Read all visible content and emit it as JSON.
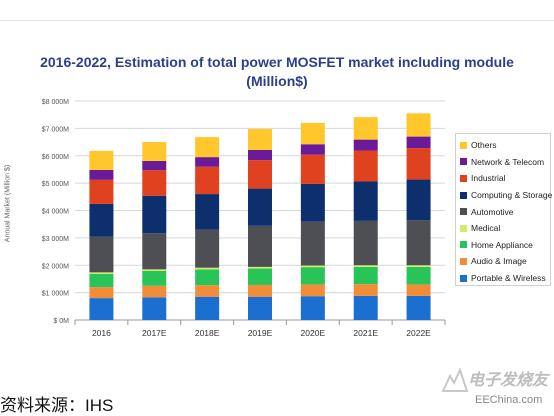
{
  "title_line1": "2016-2022, Estimation of total power MOSFET market including module",
  "title_line2": "(Million$)",
  "source_text": "资料来源：IHS",
  "watermark": {
    "chinese": "电子发烧友",
    "site": "EEChina.com"
  },
  "colors": {
    "Others": "#ffc72c",
    "Network & Telecom": "#6a1b9a",
    "Industrial": "#e0411e",
    "Computing & Storage": "#0d2f6e",
    "Automotive": "#4d4f55",
    "Medical": "#d8e86b",
    "Home Appliance": "#29c458",
    "Audio & Image": "#f28c38",
    "Portable & Wireless": "#1b6fd1"
  },
  "chart_data": {
    "type": "bar",
    "stacked": true,
    "title": "2016-2022, Estimation of total power MOSFET market including module (Million$)",
    "ylabel": "Annual Market (Million $)",
    "xlabel": "",
    "categories": [
      "2016",
      "2017E",
      "2018E",
      "2019E",
      "2020E",
      "2021E",
      "2022E"
    ],
    "ylim": [
      0,
      8000
    ],
    "yticks": [
      0,
      1000,
      2000,
      3000,
      4000,
      5000,
      6000,
      7000,
      8000
    ],
    "ytick_labels": [
      "$ 0M",
      "$1 000M",
      "$2 000M",
      "$3 000M",
      "$4 000M",
      "$5 000M",
      "$6 000M",
      "$7 000M",
      "$8 000M"
    ],
    "grid": true,
    "legend_position": "right",
    "series": [
      {
        "name": "Portable & Wireless",
        "values": [
          800,
          830,
          850,
          850,
          870,
          880,
          880
        ]
      },
      {
        "name": "Audio & Image",
        "values": [
          400,
          420,
          420,
          430,
          430,
          430,
          420
        ]
      },
      {
        "name": "Home Appliance",
        "values": [
          480,
          540,
          580,
          600,
          630,
          630,
          640
        ]
      },
      {
        "name": "Medical",
        "values": [
          60,
          60,
          60,
          60,
          60,
          60,
          60
        ]
      },
      {
        "name": "Automotive",
        "values": [
          1300,
          1320,
          1390,
          1500,
          1600,
          1620,
          1650
        ]
      },
      {
        "name": "Computing & Storage",
        "values": [
          1200,
          1370,
          1300,
          1360,
          1380,
          1440,
          1480
        ]
      },
      {
        "name": "Industrial",
        "values": [
          880,
          930,
          1000,
          1040,
          1070,
          1130,
          1150
        ]
      },
      {
        "name": "Network & Telecom",
        "values": [
          360,
          340,
          350,
          370,
          380,
          400,
          420
        ]
      },
      {
        "name": "Others",
        "values": [
          700,
          690,
          730,
          770,
          780,
          820,
          850
        ]
      }
    ]
  }
}
